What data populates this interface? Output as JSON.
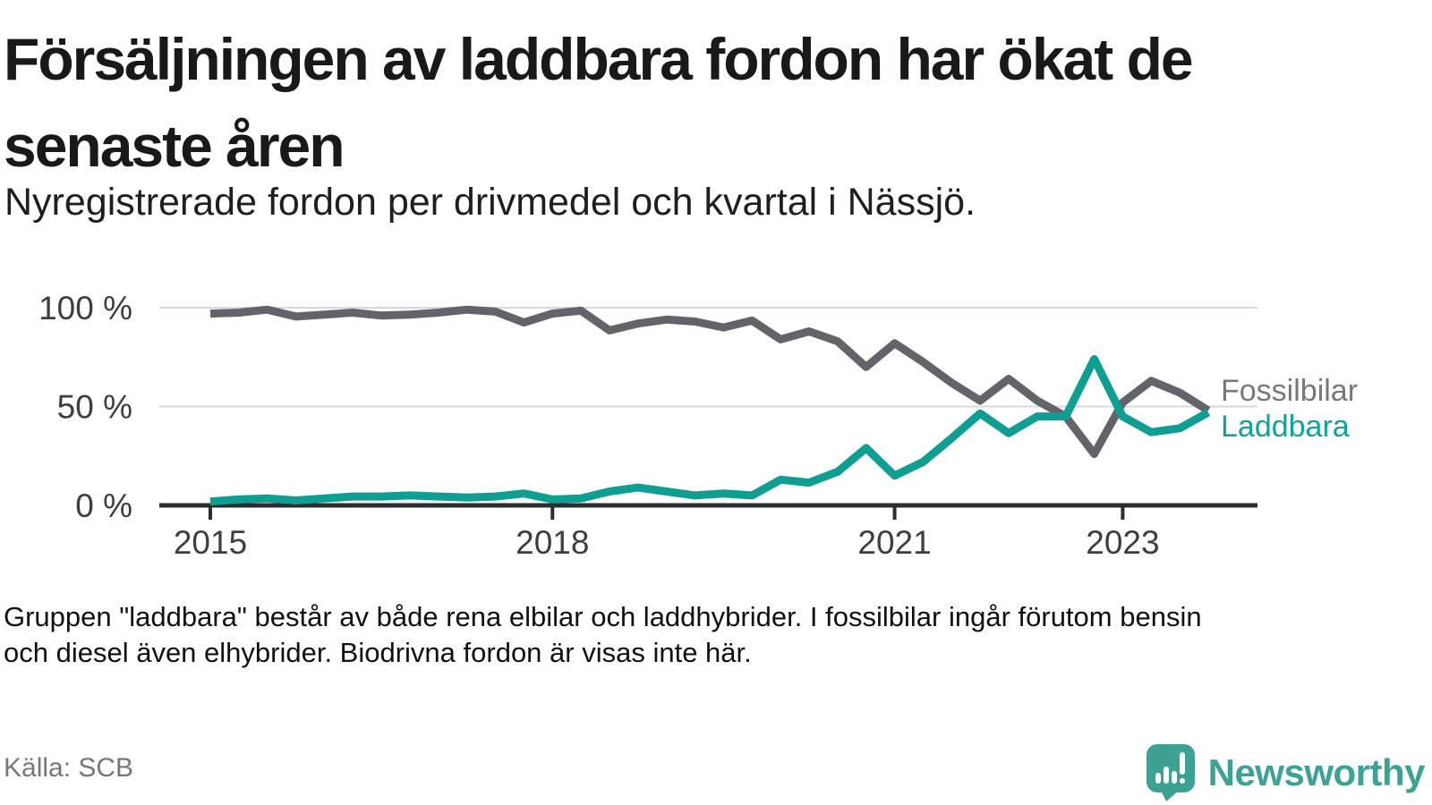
{
  "page": {
    "title_lines": [
      "Försäljningen av laddbara fordon har ökat de",
      "senaste åren"
    ],
    "subtitle": "Nyregistrerade fordon per drivmedel och kvartal i Nässjö.",
    "footnote_lines": [
      "Gruppen \"laddbara\" består av både rena elbilar och laddhybrider. I fossilbilar ingår förutom bensin",
      "och diesel även elhybrider. Biodrivna fordon är visas inte här."
    ],
    "source": "Källa: SCB",
    "brand": {
      "name": "Newsworthy",
      "icon": "newsworthy-speech-bubble-chart-icon",
      "color": "#3da294"
    }
  },
  "colors": {
    "fossil_line": "#626469",
    "fossil_label": "#77787e",
    "laddbara_line": "#0f9e92",
    "laddbara_label": "#13a296",
    "grid": "#d8d8d8",
    "axis": "#2b2d2e",
    "tick_label": "#3d3e40",
    "brand_teal": "#3da294"
  },
  "chart_data": {
    "type": "line",
    "unit": "%",
    "x_interval": "quarter",
    "x_start": "2015 Q1",
    "x_end": "2023 Q4",
    "ylim": [
      0,
      100
    ],
    "grid": "horizontal",
    "legend_position": "right-of-line-ends",
    "quarters": [
      "2015 Q1",
      "2015 Q2",
      "2015 Q3",
      "2015 Q4",
      "2016 Q1",
      "2016 Q2",
      "2016 Q3",
      "2016 Q4",
      "2017 Q1",
      "2017 Q2",
      "2017 Q3",
      "2017 Q4",
      "2018 Q1",
      "2018 Q2",
      "2018 Q3",
      "2018 Q4",
      "2019 Q1",
      "2019 Q2",
      "2019 Q3",
      "2019 Q4",
      "2020 Q1",
      "2020 Q2",
      "2020 Q3",
      "2020 Q4",
      "2021 Q1",
      "2021 Q2",
      "2021 Q3",
      "2021 Q4",
      "2022 Q1",
      "2022 Q2",
      "2022 Q3",
      "2022 Q4",
      "2023 Q1",
      "2023 Q2",
      "2023 Q3",
      "2023 Q4"
    ],
    "series": [
      {
        "name": "Fossilbilar",
        "values": [
          97,
          97.5,
          99,
          95.5,
          96.5,
          97.5,
          96,
          96.5,
          97.5,
          99,
          98,
          92.5,
          97,
          98.5,
          88.5,
          92,
          94,
          93,
          90,
          93.5,
          84,
          88,
          83,
          70,
          82,
          72.5,
          62,
          53,
          64,
          53,
          45,
          26,
          52,
          63,
          57,
          48
        ]
      },
      {
        "name": "Laddbara",
        "values": [
          2,
          3,
          3.5,
          2.5,
          3.5,
          4.5,
          4.5,
          5,
          4.5,
          4,
          4.5,
          6,
          3,
          3.5,
          7,
          9,
          7,
          5,
          6,
          5,
          13,
          11.5,
          17,
          29,
          15,
          22,
          34,
          46.5,
          36.5,
          45,
          45,
          74,
          45,
          37,
          39,
          47
        ]
      }
    ],
    "y_ticks": [
      {
        "label": "100 %",
        "value": 100
      },
      {
        "label": "50 %",
        "value": 50
      },
      {
        "label": "0 %",
        "value": 0
      }
    ],
    "x_ticks": [
      {
        "label": "2015",
        "index": 0
      },
      {
        "label": "2018",
        "index": 12
      },
      {
        "label": "2021",
        "index": 24
      },
      {
        "label": "2023",
        "index": 32
      }
    ]
  }
}
